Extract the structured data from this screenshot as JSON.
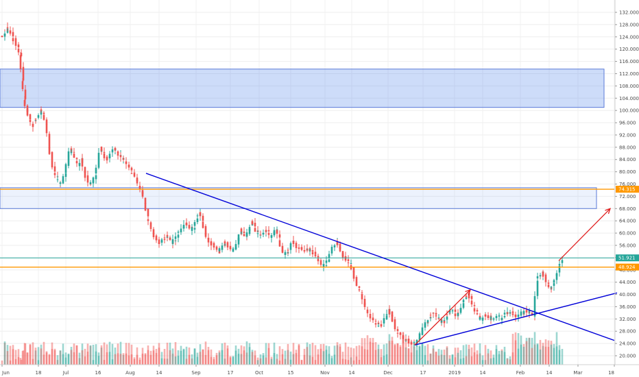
{
  "chart_data": {
    "type": "candlestick",
    "y_range": [
      18,
      134
    ],
    "y_ticks": [
      "132.000",
      "128.000",
      "124.000",
      "120.000",
      "116.000",
      "112.000",
      "108.000",
      "104.000",
      "100.000",
      "96.000",
      "92.000",
      "88.000",
      "84.000",
      "80.000",
      "76.000",
      "72.000",
      "68.000",
      "64.000",
      "60.000",
      "56.000",
      "52.000",
      "48.000",
      "44.000",
      "40.000",
      "36.000",
      "32.000",
      "28.000",
      "24.000",
      "20.000"
    ],
    "x_ticks": [
      "Jun",
      "18",
      "Jul",
      "16",
      "Aug",
      "14",
      "Sep",
      "17",
      "Oct",
      "15",
      "Nov",
      "14",
      "Dec",
      "17",
      "2019",
      "14",
      "Feb",
      "14",
      "Mar",
      "18"
    ],
    "price_labels": [
      {
        "value": 74.315,
        "text": "74.315",
        "color": "#ff9800"
      },
      {
        "value": 51.921,
        "text": "51.921",
        "color": "#26a69a"
      },
      {
        "value": 48.924,
        "text": "48.924",
        "color": "#ff9800"
      }
    ],
    "zones": [
      {
        "from": 101.0,
        "to": 113.5
      },
      {
        "from": 68.0,
        "to": 74.8
      }
    ],
    "horizontal_lines": [
      {
        "value": 74.3,
        "color": "#ff9800"
      },
      {
        "value": 48.9,
        "color": "#ff9800"
      },
      {
        "value": 51.9,
        "color": "#26a69a"
      }
    ],
    "trendlines": [
      {
        "from": [
          213,
          79.5
        ],
        "to": [
          896,
          25.0
        ],
        "color": "#0000d8"
      },
      {
        "from": [
          605,
          23.5
        ],
        "to": [
          900,
          40.5
        ],
        "color": "#0000d8"
      }
    ],
    "arrows": [
      {
        "from": [
          605,
          23.5
        ],
        "to": [
          686,
          41.5
        ],
        "color": "#e02020"
      },
      {
        "from": [
          815,
          51.0
        ],
        "to": [
          890,
          68.0
        ],
        "color": "#e02020"
      }
    ],
    "price_series": [
      [
        5,
        124
      ],
      [
        9,
        127
      ],
      [
        13,
        126
      ],
      [
        17,
        124
      ],
      [
        21,
        122
      ],
      [
        25,
        120
      ],
      [
        29,
        118
      ],
      [
        32,
        110
      ],
      [
        35,
        104
      ],
      [
        38,
        100
      ],
      [
        42,
        97
      ],
      [
        46,
        95
      ],
      [
        50,
        97
      ],
      [
        54,
        98
      ],
      [
        58,
        100
      ],
      [
        62,
        99
      ],
      [
        66,
        96
      ],
      [
        70,
        88
      ],
      [
        74,
        84
      ],
      [
        78,
        80
      ],
      [
        82,
        78
      ],
      [
        86,
        76
      ],
      [
        90,
        77
      ],
      [
        94,
        80
      ],
      [
        98,
        85
      ],
      [
        102,
        88
      ],
      [
        106,
        86
      ],
      [
        110,
        84
      ],
      [
        114,
        82
      ],
      [
        118,
        84
      ],
      [
        122,
        80
      ],
      [
        126,
        77
      ],
      [
        130,
        76
      ],
      [
        134,
        77
      ],
      [
        138,
        79
      ],
      [
        142,
        84
      ],
      [
        146,
        88
      ],
      [
        150,
        86
      ],
      [
        154,
        84
      ],
      [
        158,
        85
      ],
      [
        162,
        87
      ],
      [
        166,
        88
      ],
      [
        170,
        86
      ],
      [
        174,
        85
      ],
      [
        178,
        84
      ],
      [
        182,
        83
      ],
      [
        186,
        82
      ],
      [
        190,
        80
      ],
      [
        194,
        79
      ],
      [
        198,
        77
      ],
      [
        202,
        75
      ],
      [
        206,
        73
      ],
      [
        210,
        70
      ],
      [
        214,
        65
      ],
      [
        218,
        62
      ],
      [
        222,
        60
      ],
      [
        226,
        58
      ],
      [
        230,
        57
      ],
      [
        234,
        57
      ],
      [
        238,
        58
      ],
      [
        242,
        59
      ],
      [
        246,
        58
      ],
      [
        250,
        57
      ],
      [
        254,
        58
      ],
      [
        258,
        60
      ],
      [
        262,
        61
      ],
      [
        266,
        62
      ],
      [
        270,
        63
      ],
      [
        274,
        62
      ],
      [
        278,
        61
      ],
      [
        282,
        62
      ],
      [
        286,
        65
      ],
      [
        290,
        67
      ],
      [
        294,
        64
      ],
      [
        298,
        60
      ],
      [
        302,
        58
      ],
      [
        306,
        57
      ],
      [
        310,
        56
      ],
      [
        314,
        55
      ],
      [
        318,
        54
      ],
      [
        322,
        55
      ],
      [
        326,
        57
      ],
      [
        330,
        56
      ],
      [
        334,
        55
      ],
      [
        338,
        54
      ],
      [
        342,
        55
      ],
      [
        346,
        58
      ],
      [
        350,
        61
      ],
      [
        354,
        60
      ],
      [
        358,
        59
      ],
      [
        362,
        61
      ],
      [
        366,
        64
      ],
      [
        370,
        62
      ],
      [
        374,
        60
      ],
      [
        378,
        59
      ],
      [
        382,
        60
      ],
      [
        386,
        61
      ],
      [
        390,
        60
      ],
      [
        394,
        59
      ],
      [
        398,
        60
      ],
      [
        402,
        61
      ],
      [
        406,
        58
      ],
      [
        410,
        54
      ],
      [
        414,
        53
      ],
      [
        418,
        54
      ],
      [
        422,
        56
      ],
      [
        426,
        57
      ],
      [
        430,
        56
      ],
      [
        434,
        55
      ],
      [
        438,
        55
      ],
      [
        442,
        54
      ],
      [
        446,
        55
      ],
      [
        450,
        54
      ],
      [
        454,
        54
      ],
      [
        458,
        53
      ],
      [
        462,
        52
      ],
      [
        466,
        50
      ],
      [
        470,
        49
      ],
      [
        474,
        50
      ],
      [
        478,
        52
      ],
      [
        482,
        54
      ],
      [
        486,
        56
      ],
      [
        490,
        57
      ],
      [
        494,
        55
      ],
      [
        498,
        53
      ],
      [
        502,
        52
      ],
      [
        506,
        51
      ],
      [
        510,
        50
      ],
      [
        514,
        47
      ],
      [
        518,
        44
      ],
      [
        522,
        42
      ],
      [
        526,
        40
      ],
      [
        530,
        37
      ],
      [
        534,
        34
      ],
      [
        538,
        33
      ],
      [
        542,
        32
      ],
      [
        546,
        31
      ],
      [
        550,
        30
      ],
      [
        554,
        30
      ],
      [
        558,
        31
      ],
      [
        562,
        33
      ],
      [
        566,
        35
      ],
      [
        570,
        33
      ],
      [
        574,
        30
      ],
      [
        578,
        28
      ],
      [
        582,
        27
      ],
      [
        586,
        26
      ],
      [
        590,
        25
      ],
      [
        594,
        25
      ],
      [
        598,
        24
      ],
      [
        602,
        24
      ],
      [
        606,
        24
      ],
      [
        610,
        26
      ],
      [
        614,
        28
      ],
      [
        618,
        30
      ],
      [
        622,
        31
      ],
      [
        626,
        33
      ],
      [
        630,
        34
      ],
      [
        634,
        33
      ],
      [
        638,
        32
      ],
      [
        642,
        31
      ],
      [
        646,
        31
      ],
      [
        650,
        33
      ],
      [
        654,
        34
      ],
      [
        658,
        35
      ],
      [
        662,
        34
      ],
      [
        666,
        33
      ],
      [
        670,
        35
      ],
      [
        674,
        37
      ],
      [
        678,
        39
      ],
      [
        682,
        40
      ],
      [
        686,
        38
      ],
      [
        690,
        36
      ],
      [
        694,
        34
      ],
      [
        698,
        32
      ],
      [
        702,
        32
      ],
      [
        706,
        33
      ],
      [
        710,
        33
      ],
      [
        714,
        32
      ],
      [
        718,
        32
      ],
      [
        722,
        33
      ],
      [
        726,
        33
      ],
      [
        730,
        32
      ],
      [
        734,
        33
      ],
      [
        738,
        34
      ],
      [
        742,
        34
      ],
      [
        746,
        34
      ],
      [
        750,
        33
      ],
      [
        754,
        33
      ],
      [
        758,
        34
      ],
      [
        762,
        34
      ],
      [
        766,
        35
      ],
      [
        770,
        34
      ],
      [
        774,
        34
      ],
      [
        778,
        33
      ],
      [
        782,
        45
      ],
      [
        786,
        46
      ],
      [
        790,
        47
      ],
      [
        794,
        45
      ],
      [
        798,
        43
      ],
      [
        802,
        42
      ],
      [
        806,
        44
      ],
      [
        810,
        46
      ],
      [
        814,
        49
      ],
      [
        818,
        51
      ]
    ]
  }
}
